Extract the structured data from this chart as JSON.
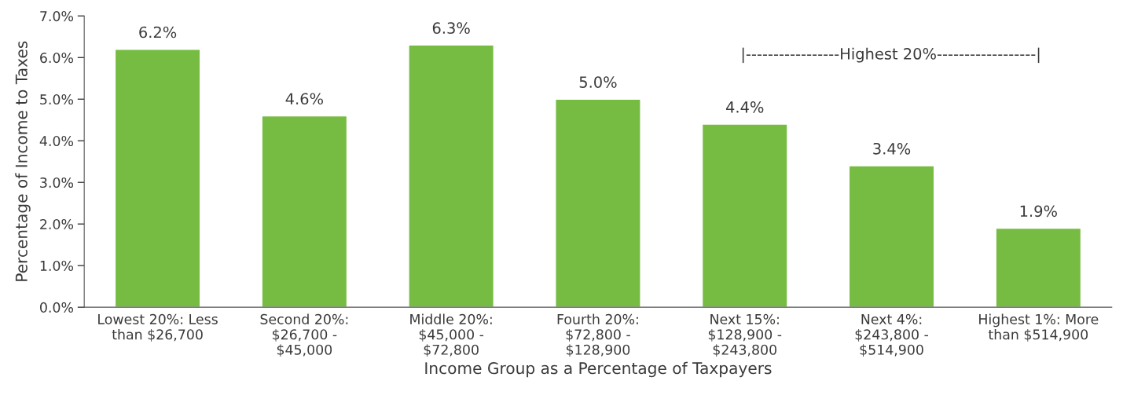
{
  "chart_data": {
    "type": "bar",
    "xlabel": "Income Group as a Percentage of Taxpayers",
    "ylabel": "Percentage of Income to Taxes",
    "categories": [
      "Lowest 20%: Less\nthan $26,700",
      "Second 20%:\n$26,700 -\n$45,000",
      "Middle 20%:\n$45,000 -\n$72,800",
      "Fourth 20%:\n$72,800 -\n$128,900",
      "Next 15%:\n$128,900 -\n$243,800",
      "Next 4%:\n$243,800 -\n$514,900",
      "Highest 1%: More\nthan $514,900"
    ],
    "values": [
      6.2,
      4.6,
      6.3,
      5.0,
      4.4,
      3.4,
      1.9
    ],
    "value_labels": [
      "6.2%",
      "4.6%",
      "6.3%",
      "5.0%",
      "4.4%",
      "3.4%",
      "1.9%"
    ],
    "color": "#76bc43",
    "ylim": [
      0,
      7
    ],
    "yticks": [
      {
        "value": 0,
        "label": "0.0%"
      },
      {
        "value": 1,
        "label": "1.0%"
      },
      {
        "value": 2,
        "label": "2.0%"
      },
      {
        "value": 3,
        "label": "3.0%"
      },
      {
        "value": 4,
        "label": "4.0%"
      },
      {
        "value": 5,
        "label": "5.0%"
      },
      {
        "value": 6,
        "label": "6.0%"
      },
      {
        "value": 7,
        "label": "7.0%"
      }
    ],
    "annotations": [
      "|-----------------Highest 20%------------------|"
    ],
    "grid": false
  }
}
